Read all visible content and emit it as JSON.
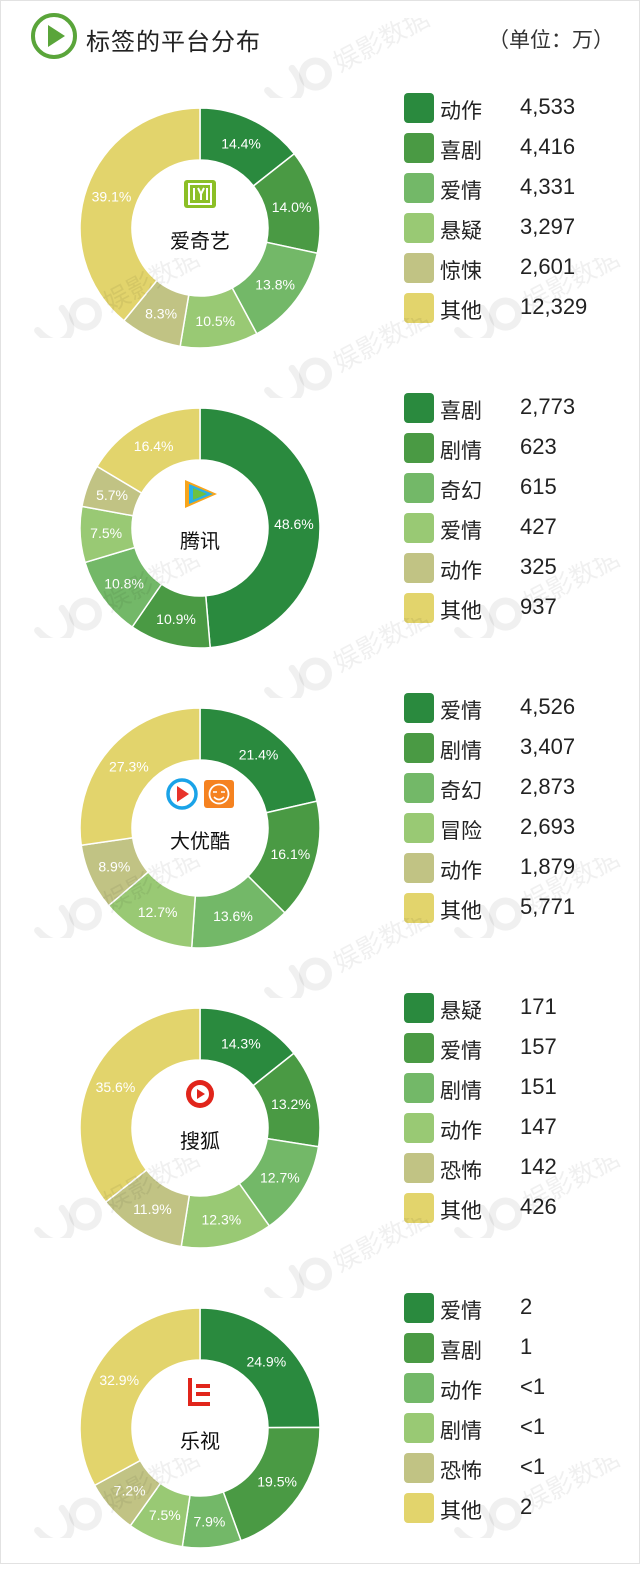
{
  "header": {
    "title": "标签的平台分布",
    "unit": "（单位：万）"
  },
  "colors": [
    "#2a8a3e",
    "#4a9a44",
    "#73b868",
    "#99c974",
    "#c1c384",
    "#e2d46c"
  ],
  "watermark_text": "娱影数据",
  "chart_data": [
    {
      "type": "pie",
      "platform": "爱奇艺",
      "logo_icon": "iqiyi-logo-icon",
      "categories": [
        "动作",
        "喜剧",
        "爱情",
        "悬疑",
        "惊悚",
        "其他"
      ],
      "values": [
        "4,533",
        "4,416",
        "4,331",
        "3,297",
        "2,601",
        "12,329"
      ],
      "percents": [
        14.4,
        14.0,
        13.8,
        10.5,
        8.3,
        39.1
      ],
      "percent_labels": [
        "14.4%",
        "14.0%",
        "13.8%",
        "10.5%",
        "8.3%",
        "39.1%"
      ]
    },
    {
      "type": "pie",
      "platform": "腾讯",
      "logo_icon": "tencent-video-logo-icon",
      "categories": [
        "喜剧",
        "剧情",
        "奇幻",
        "爱情",
        "动作",
        "其他"
      ],
      "values": [
        "2,773",
        "623",
        "615",
        "427",
        "325",
        "937"
      ],
      "percents": [
        48.6,
        10.9,
        10.8,
        7.5,
        5.7,
        16.4
      ],
      "percent_labels": [
        "48.6%",
        "10.9%",
        "10.8%",
        "7.5%",
        "5.7%",
        "16.4%"
      ]
    },
    {
      "type": "pie",
      "platform": "大优酷",
      "logo_icon": "youku-tudou-logo-icon",
      "categories": [
        "爱情",
        "剧情",
        "奇幻",
        "冒险",
        "动作",
        "其他"
      ],
      "values": [
        "4,526",
        "3,407",
        "2,873",
        "2,693",
        "1,879",
        "5,771"
      ],
      "percents": [
        21.4,
        16.1,
        13.6,
        12.7,
        8.9,
        27.3
      ],
      "percent_labels": [
        "21.4%",
        "16.1%",
        "13.6%",
        "12.7%",
        "8.9%",
        "27.3%"
      ]
    },
    {
      "type": "pie",
      "platform": "搜狐",
      "logo_icon": "sohu-video-logo-icon",
      "categories": [
        "悬疑",
        "爱情",
        "剧情",
        "动作",
        "恐怖",
        "其他"
      ],
      "values": [
        "171",
        "157",
        "151",
        "147",
        "142",
        "426"
      ],
      "percents": [
        14.3,
        13.2,
        12.7,
        12.3,
        11.9,
        35.6
      ],
      "percent_labels": [
        "14.3%",
        "13.2%",
        "12.7%",
        "12.3%",
        "11.9%",
        "35.6%"
      ]
    },
    {
      "type": "pie",
      "platform": "乐视",
      "logo_icon": "letv-logo-icon",
      "categories": [
        "爱情",
        "喜剧",
        "动作",
        "剧情",
        "恐怖",
        "其他"
      ],
      "values": [
        "2",
        "1",
        "<1",
        "<1",
        "<1",
        "2"
      ],
      "percents": [
        24.9,
        19.5,
        7.9,
        7.5,
        7.2,
        32.9
      ],
      "percent_labels": [
        "24.9%",
        "19.5%",
        "7.9%",
        "7.5%",
        "7.2%",
        "32.9%"
      ]
    }
  ]
}
